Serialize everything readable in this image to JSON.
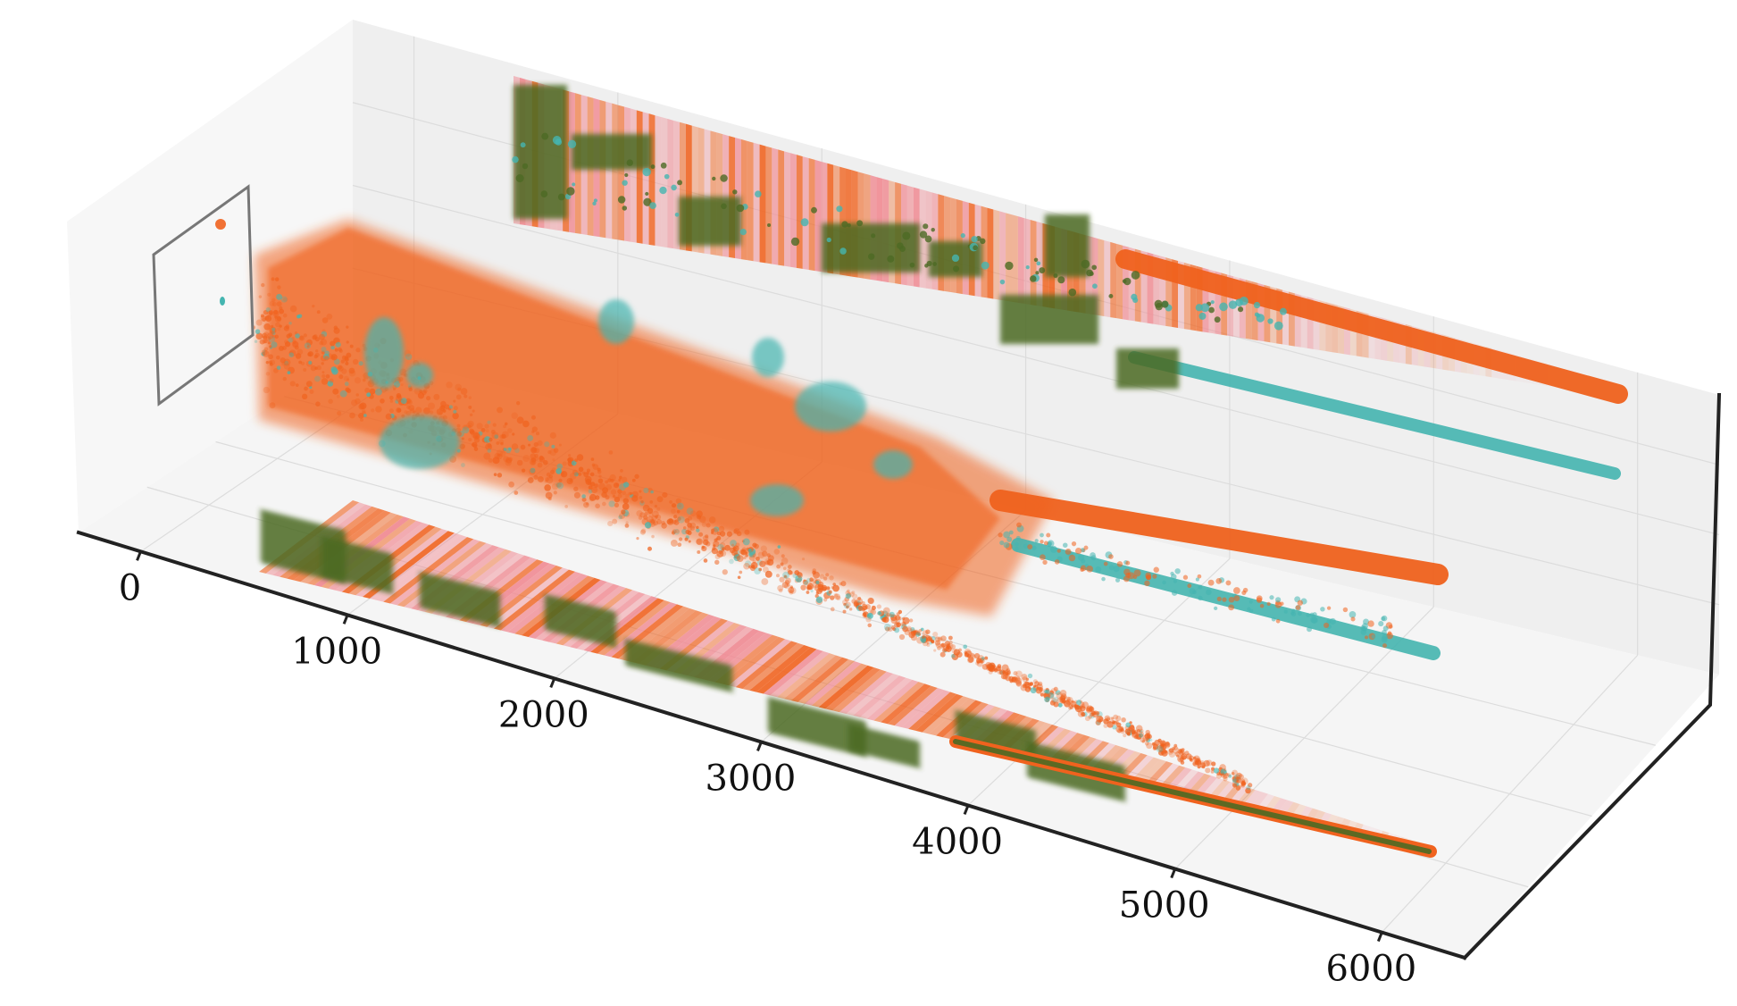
{
  "chart_data": {
    "type": "scatter",
    "projection": "3d",
    "title": "",
    "xlabel": "",
    "ylabel": "",
    "zlabel": "",
    "x_axis": {
      "ticks": [
        0,
        1000,
        2000,
        3000,
        4000,
        5000,
        6000
      ],
      "tick_labels": [
        "0",
        "1000",
        "2000",
        "3000",
        "4000",
        "5000",
        "6000"
      ],
      "range": [
        -300,
        6400
      ]
    },
    "grid": true,
    "legend": "none",
    "colors": {
      "orange": "#f0621e",
      "teal": "#45b5b0",
      "dark_green": "#4c6a24",
      "pink": "#f08a92",
      "pane": "#f2f2f2",
      "axis": "#222222"
    },
    "series": [
      {
        "color": "orange",
        "x_range": [
          -50,
          6300
        ]
      },
      {
        "color": "teal",
        "x_range": [
          -50,
          6300
        ]
      },
      {
        "color": "dark_green",
        "x_range": [
          0,
          4200
        ]
      },
      {
        "color": "pink",
        "x_range": [
          0,
          5800
        ]
      }
    ],
    "projections": [
      "main 3d cloud",
      "back wall (x–z)",
      "floor (x–y)",
      "side wall inset (y–z)"
    ]
  }
}
